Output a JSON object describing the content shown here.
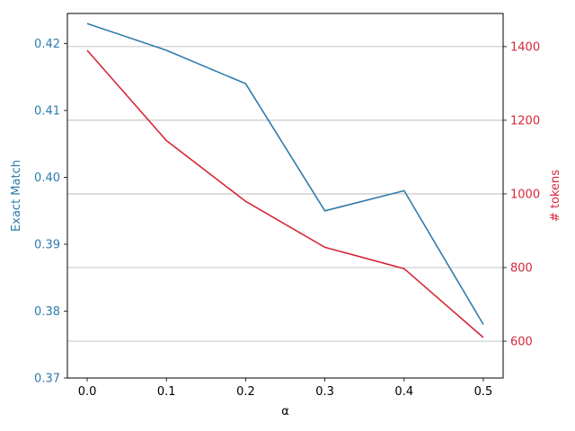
{
  "chart_data": {
    "type": "line",
    "x": [
      0.0,
      0.1,
      0.2,
      0.3,
      0.4,
      0.5
    ],
    "x_ticks": [
      "0.0",
      "0.1",
      "0.2",
      "0.3",
      "0.4",
      "0.5"
    ],
    "xlabel": "α",
    "xlim": [
      -0.025,
      0.525
    ],
    "grid": "horizontal, right axis",
    "series": [
      {
        "axis": "left",
        "color": "#2f7bab",
        "values": [
          0.423,
          0.419,
          0.414,
          0.395,
          0.398,
          0.378
        ]
      },
      {
        "axis": "right",
        "color": "#d62739",
        "values": [
          1390,
          1145,
          980,
          855,
          797,
          610
        ]
      }
    ],
    "left_axis": {
      "label": "Exact Match",
      "color": "#2f7bab",
      "ylim": [
        0.37,
        0.4245
      ],
      "ticks": [
        0.37,
        0.38,
        0.39,
        0.4,
        0.41,
        0.42
      ],
      "tick_labels": [
        "0.37",
        "0.38",
        "0.39",
        "0.40",
        "0.41",
        "0.42"
      ]
    },
    "right_axis": {
      "label": "# tokens",
      "color": "#d62739",
      "ylim": [
        500,
        1490
      ],
      "ticks": [
        600,
        800,
        1000,
        1200,
        1400
      ],
      "tick_labels": [
        "600",
        "800",
        "1000",
        "1200",
        "1400"
      ]
    }
  }
}
